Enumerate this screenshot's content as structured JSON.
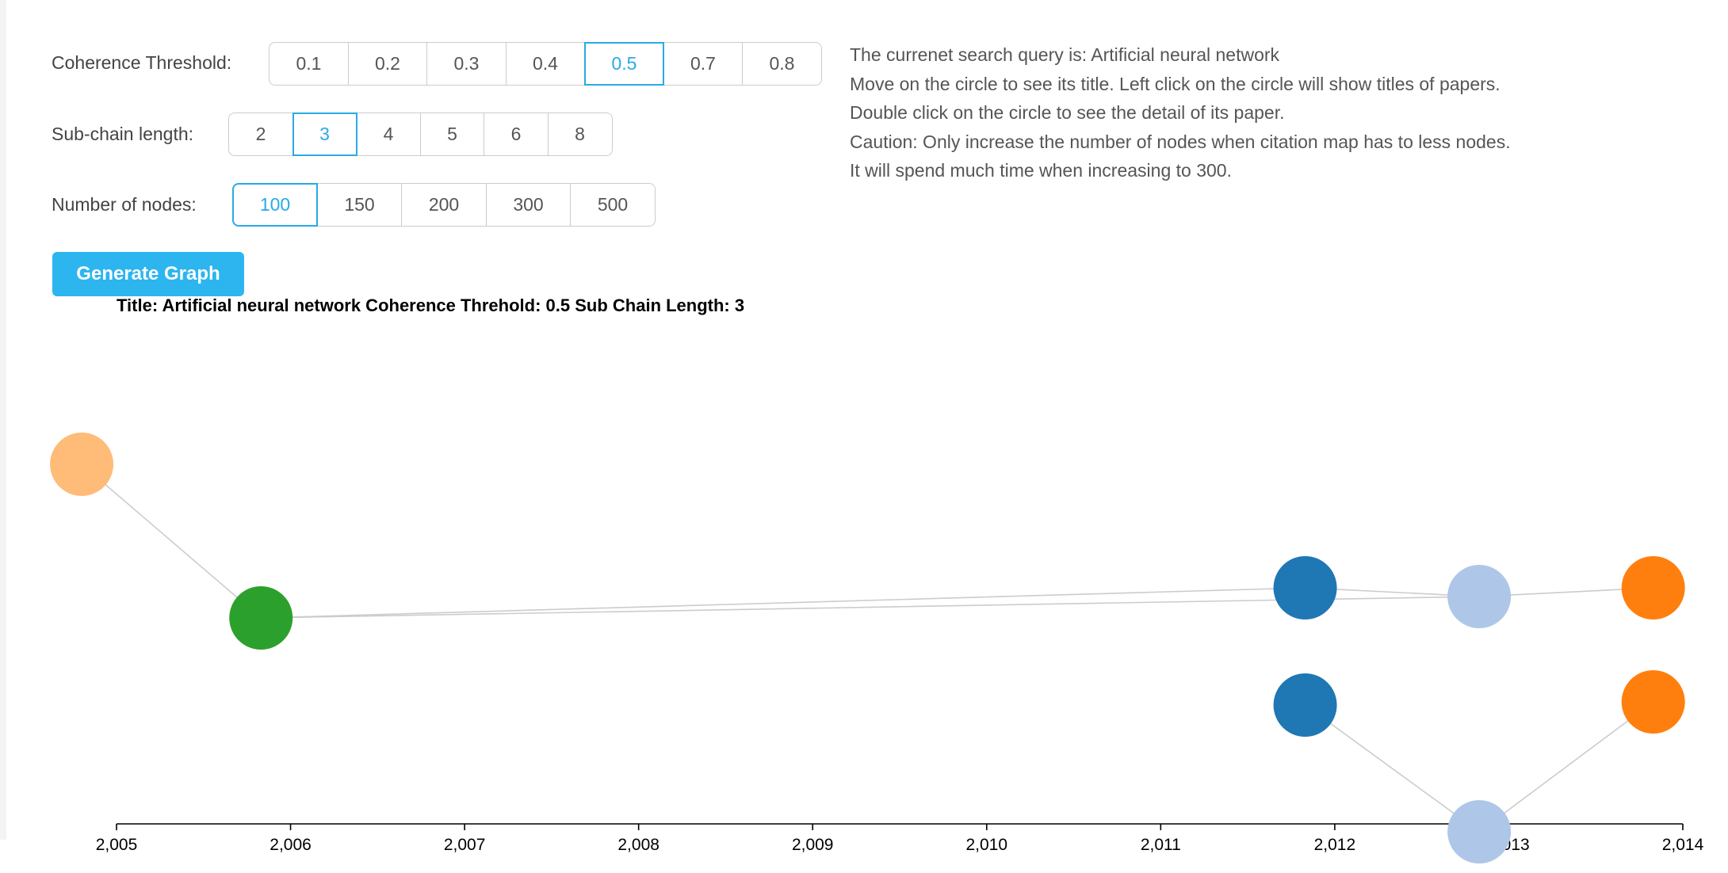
{
  "controls": {
    "coherence": {
      "label": "Coherence Threshold:",
      "options": [
        "0.1",
        "0.2",
        "0.3",
        "0.4",
        "0.5",
        "0.7",
        "0.8"
      ],
      "selected": "0.5"
    },
    "subchain": {
      "label": "Sub-chain length:",
      "options": [
        "2",
        "3",
        "4",
        "5",
        "6",
        "8"
      ],
      "selected": "3"
    },
    "nodes": {
      "label": "Number of nodes:",
      "options": [
        "100",
        "150",
        "200",
        "300",
        "500"
      ],
      "selected": "100"
    },
    "generate_label": "Generate Graph"
  },
  "info": {
    "lines": [
      "The currenet search query is: Artificial neural network",
      "Move on the circle to see its title. Left click on the circle will show titles of papers.",
      "Double click on the circle to see the detail of its paper.",
      "Caution: Only increase the number of nodes when citation map has to less nodes.",
      "It will spend much time when increasing to 300."
    ]
  },
  "graph": {
    "title": "Title: Artificial neural network Coherence Threhold: 0.5 Sub Chain Length: 3",
    "colors": {
      "light_orange": "#ffbb78",
      "green": "#2ca02c",
      "dark_blue": "#1f77b4",
      "light_blue": "#aec7e8",
      "orange": "#ff7f0e",
      "edge": "#cccccc",
      "axis": "#000000"
    },
    "axis": {
      "min": 2005,
      "max": 2014,
      "ticks": [
        "2,005",
        "2,006",
        "2,007",
        "2,008",
        "2,009",
        "2,010",
        "2,011",
        "2,012",
        "2,013",
        "2,014"
      ]
    },
    "nodes": [
      {
        "id": "n1",
        "year": 2004.8,
        "color": "light_orange"
      },
      {
        "id": "n2",
        "year": 2005.83,
        "color": "green"
      },
      {
        "id": "n3",
        "year": 2011.83,
        "color": "dark_blue"
      },
      {
        "id": "n4",
        "year": 2012.83,
        "color": "light_blue"
      },
      {
        "id": "n5",
        "year": 2013.83,
        "color": "orange"
      },
      {
        "id": "n6",
        "year": 2011.83,
        "color": "dark_blue"
      },
      {
        "id": "n7",
        "year": 2012.83,
        "color": "light_blue"
      },
      {
        "id": "n8",
        "year": 2013.83,
        "color": "orange"
      }
    ],
    "edges": [
      [
        "n1",
        "n2"
      ],
      [
        "n2",
        "n3"
      ],
      [
        "n2",
        "n4"
      ],
      [
        "n3",
        "n4"
      ],
      [
        "n4",
        "n5"
      ],
      [
        "n6",
        "n7"
      ],
      [
        "n7",
        "n8"
      ]
    ]
  }
}
